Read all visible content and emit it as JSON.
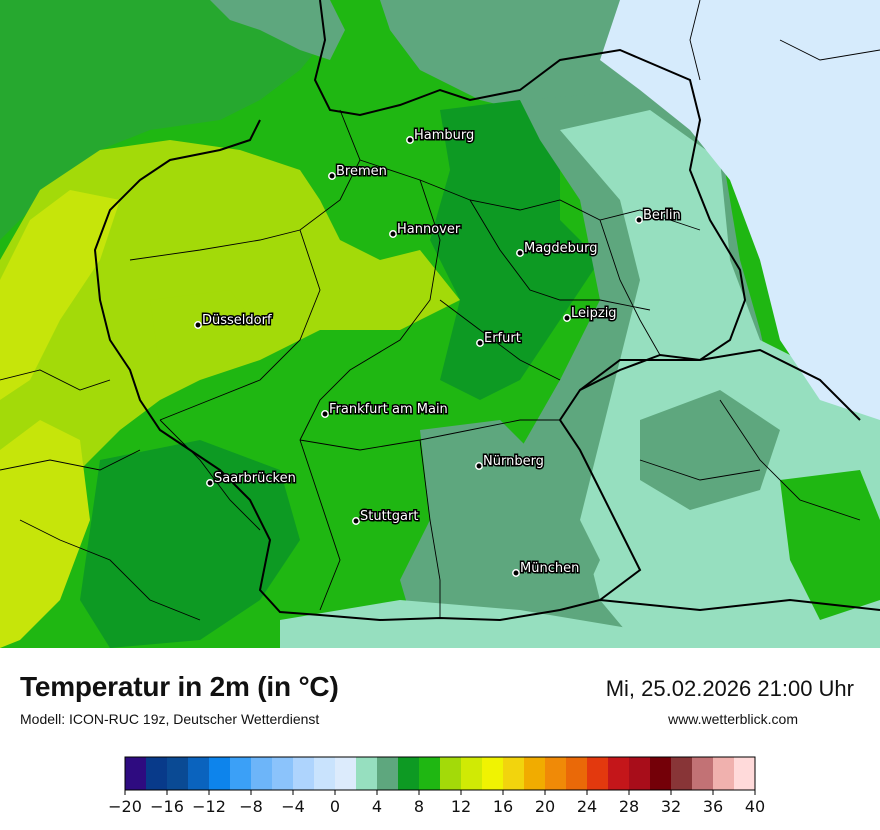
{
  "header": {
    "title": "Temperatur in 2m (in °C)",
    "subtitle": "Modell: ICON-RUC 19z, Deutscher Wetterdienst",
    "datetime": "Mi, 25.02.2026 21:00 Uhr",
    "website": "www.wetterblick.com"
  },
  "colors": {
    "sea": "#26a82f",
    "lowland_warm": "#a3da09",
    "coast_warm": "#c6e50a",
    "mid": "#1fb712",
    "green": "#0d9a23",
    "cool": "#5ea77e",
    "cold": "#96dfbf",
    "east_cold": "#d6ebfc",
    "border": "#000000"
  },
  "cities": [
    {
      "name": "Hamburg"
    },
    {
      "name": "Bremen"
    },
    {
      "name": "Hannover"
    },
    {
      "name": "Berlin"
    },
    {
      "name": "Magdeburg"
    },
    {
      "name": "Düsseldorf"
    },
    {
      "name": "Leipzig"
    },
    {
      "name": "Erfurt"
    },
    {
      "name": "Frankfurt am Main"
    },
    {
      "name": "Nürnberg"
    },
    {
      "name": "Saarbrücken"
    },
    {
      "name": "Stuttgart"
    },
    {
      "name": "München"
    }
  ],
  "legend": {
    "min": -20,
    "max": 40,
    "colors": [
      "#2e0b80",
      "#083a8a",
      "#0a4a94",
      "#0a63be",
      "#0d84ec",
      "#3ba0f7",
      "#6db5f9",
      "#8bc3fb",
      "#aed4fd",
      "#c9e3fd",
      "#dcebfc",
      "#96dfbf",
      "#5ea77e",
      "#0d9a23",
      "#1fb712",
      "#a3da09",
      "#d0ea05",
      "#f0f302",
      "#f2d40d",
      "#f1ac00",
      "#f08a07",
      "#ea6908",
      "#e3390e",
      "#c4161a",
      "#a80d1a",
      "#740008",
      "#883537",
      "#c27275",
      "#f0b1ae",
      "#ffdada"
    ],
    "ticks": [
      "−20",
      "−16",
      "−12",
      "−8",
      "−4",
      "0",
      "4",
      "8",
      "12",
      "16",
      "20",
      "24",
      "28",
      "32",
      "36",
      "40"
    ]
  }
}
